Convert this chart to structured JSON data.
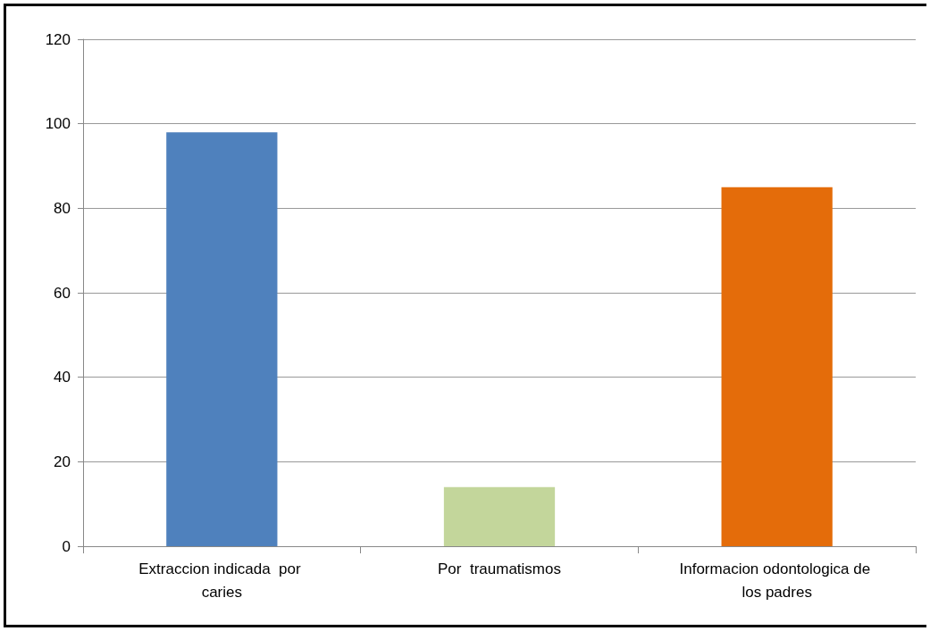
{
  "chart_data": {
    "type": "bar",
    "categories": [
      "Extraccion indicada  por caries",
      "Por  traumatismos",
      "Informacion odontologica de los padres"
    ],
    "values": [
      98,
      14,
      85
    ],
    "colors": [
      "#4f81bd",
      "#c3d69b",
      "#e46c0a"
    ],
    "ylim": [
      0,
      120
    ],
    "yticks": [
      0,
      20,
      40,
      60,
      80,
      100,
      120
    ],
    "grid": "y"
  }
}
